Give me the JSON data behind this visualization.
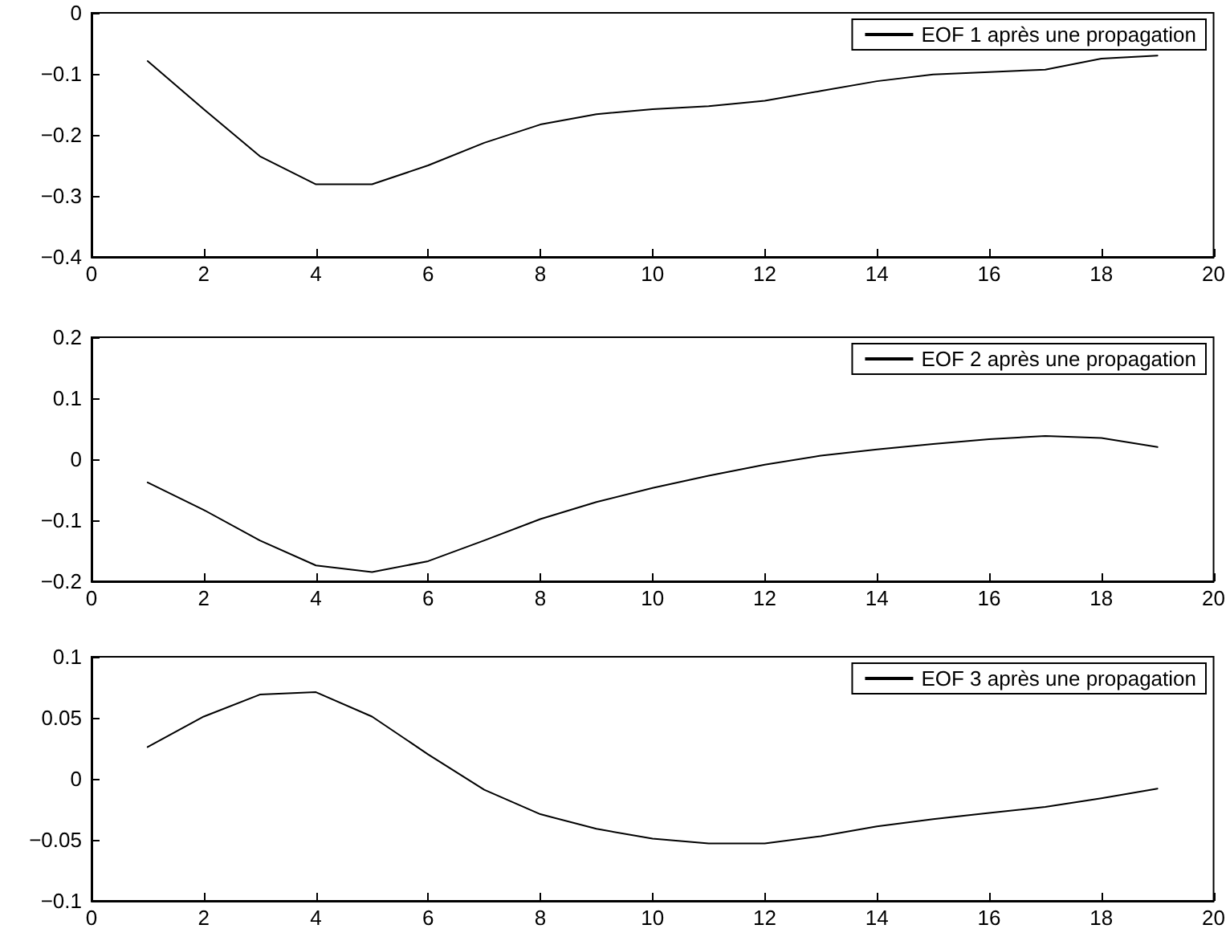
{
  "chart_data": [
    {
      "type": "line",
      "x": [
        1,
        2,
        3,
        4,
        5,
        6,
        7,
        8,
        9,
        10,
        11,
        12,
        13,
        14,
        15,
        16,
        17,
        18,
        19
      ],
      "xlim": [
        0,
        20
      ],
      "xticks": [
        0,
        2,
        4,
        6,
        8,
        10,
        12,
        14,
        16,
        18,
        20
      ],
      "ylim": [
        -0.4,
        0
      ],
      "yticks": [
        -0.4,
        -0.3,
        -0.2,
        -0.1,
        0
      ],
      "grid": false,
      "legend": "top right",
      "marker": "none",
      "line_style": "solid",
      "series": [
        {
          "name": "EOF 1 après une propagation",
          "color": "#000000",
          "values": [
            -0.079,
            -0.158,
            -0.235,
            -0.281,
            -0.281,
            -0.25,
            -0.213,
            -0.183,
            -0.166,
            -0.158,
            -0.153,
            -0.144,
            -0.128,
            -0.112,
            -0.101,
            -0.097,
            -0.093,
            -0.075,
            -0.07
          ]
        }
      ]
    },
    {
      "type": "line",
      "x": [
        1,
        2,
        3,
        4,
        5,
        6,
        7,
        8,
        9,
        10,
        11,
        12,
        13,
        14,
        15,
        16,
        17,
        18,
        19
      ],
      "xlim": [
        0,
        20
      ],
      "xticks": [
        0,
        2,
        4,
        6,
        8,
        10,
        12,
        14,
        16,
        18,
        20
      ],
      "ylim": [
        -0.2,
        0.2
      ],
      "yticks": [
        -0.2,
        -0.1,
        0,
        0.1,
        0.2
      ],
      "grid": false,
      "legend": "top right",
      "marker": "none",
      "line_style": "solid",
      "series": [
        {
          "name": "EOF 2 après une propagation",
          "color": "#000000",
          "values": [
            -0.038,
            -0.083,
            -0.133,
            -0.174,
            -0.185,
            -0.167,
            -0.133,
            -0.098,
            -0.07,
            -0.047,
            -0.027,
            -0.009,
            0.006,
            0.016,
            0.025,
            0.033,
            0.038,
            0.035,
            0.02
          ]
        }
      ]
    },
    {
      "type": "line",
      "x": [
        1,
        2,
        3,
        4,
        5,
        6,
        7,
        8,
        9,
        10,
        11,
        12,
        13,
        14,
        15,
        16,
        17,
        18,
        19
      ],
      "xlim": [
        0,
        20
      ],
      "xticks": [
        0,
        2,
        4,
        6,
        8,
        10,
        12,
        14,
        16,
        18,
        20
      ],
      "ylim": [
        -0.1,
        0.1
      ],
      "yticks": [
        -0.1,
        -0.05,
        0,
        0.05,
        0.1
      ],
      "grid": false,
      "legend": "top right",
      "marker": "none",
      "line_style": "solid",
      "series": [
        {
          "name": "EOF 3 après une propagation",
          "color": "#000000",
          "values": [
            0.026,
            0.051,
            0.069,
            0.071,
            0.051,
            0.02,
            -0.009,
            -0.029,
            -0.041,
            -0.049,
            -0.053,
            -0.053,
            -0.047,
            -0.039,
            -0.033,
            -0.028,
            -0.023,
            -0.016,
            -0.008
          ]
        }
      ]
    }
  ]
}
